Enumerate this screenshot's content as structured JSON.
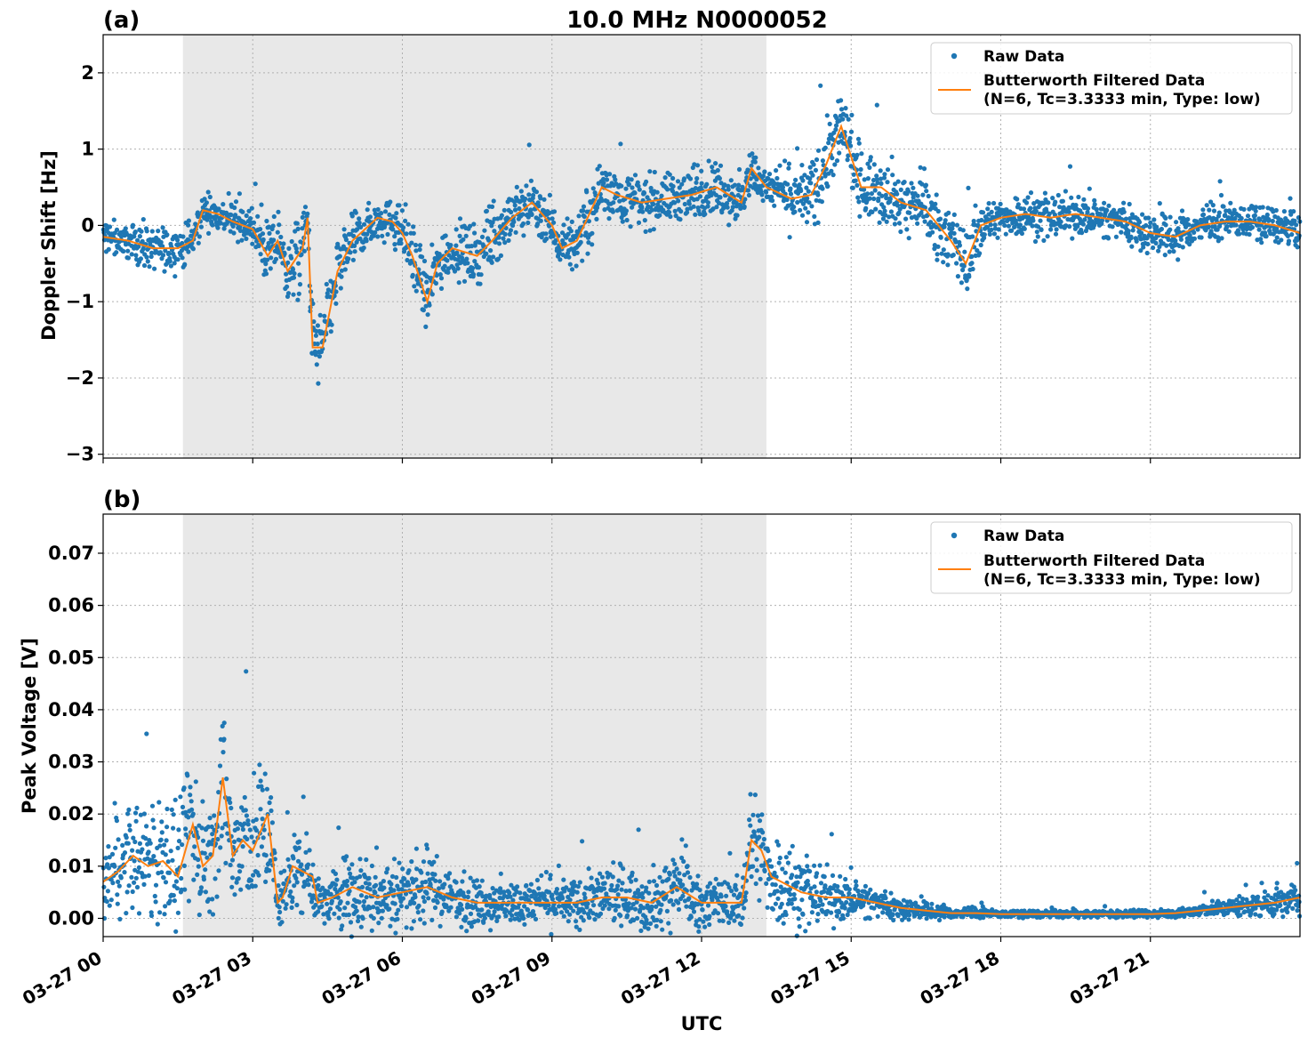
{
  "figure": {
    "title": "10.0 MHz N0000052",
    "xlabel": "UTC",
    "colors": {
      "raw": "#1f77b4",
      "filtered": "#ff7f0e",
      "shade": "#e8e8e8"
    }
  },
  "x_ticks": [
    "03-27 00",
    "03-27 03",
    "03-27 06",
    "03-27 09",
    "03-27 12",
    "03-27 15",
    "03-27 18",
    "03-27 21"
  ],
  "chart_data": [
    {
      "panel": "(a)",
      "type": "scatter",
      "title": "10.0 MHz N0000052",
      "xlabel": "",
      "ylabel": "Doppler Shift [Hz]",
      "xlim_hours": [
        0,
        24
      ],
      "ylim": [
        -3.05,
        2.5
      ],
      "yticks": [
        2,
        1,
        0,
        -1,
        -2,
        -3
      ],
      "ytick_labels": [
        "2",
        "1",
        "0",
        "−1",
        "−2",
        "−3"
      ],
      "grid": true,
      "legend_position": "top-right",
      "shaded_interval_hours": [
        1.6,
        13.3
      ],
      "legend": {
        "raw": "Raw Data",
        "filtered_line1": "Butterworth Filtered Data",
        "filtered_line2": "(N=6, Tc=3.3333 min, Type: low)"
      },
      "series": [
        {
          "name": "Butterworth Filtered Data",
          "x_hours": [
            0,
            0.5,
            1,
            1.5,
            1.8,
            2,
            2.3,
            2.6,
            3,
            3.3,
            3.5,
            3.7,
            4,
            4.1,
            4.2,
            4.4,
            4.7,
            5,
            5.5,
            5.8,
            6,
            6.2,
            6.5,
            6.7,
            7,
            7.5,
            7.8,
            8.2,
            8.6,
            9,
            9.2,
            9.5,
            10,
            10.3,
            10.8,
            11.3,
            11.8,
            12.3,
            12.8,
            13,
            13.3,
            13.8,
            14.2,
            14.5,
            14.8,
            15.2,
            15.6,
            16,
            16.5,
            17,
            17.3,
            17.6,
            18,
            18.5,
            19,
            19.5,
            20,
            20.5,
            21,
            21.5,
            22,
            22.5,
            23,
            23.5,
            24
          ],
          "y": [
            -0.15,
            -0.2,
            -0.3,
            -0.3,
            -0.2,
            0.2,
            0.15,
            0.05,
            -0.05,
            -0.4,
            -0.2,
            -0.6,
            -0.3,
            0.1,
            -1.6,
            -1.6,
            -0.6,
            -0.2,
            0.1,
            0.05,
            -0.1,
            -0.4,
            -1.0,
            -0.5,
            -0.3,
            -0.4,
            -0.2,
            0.1,
            0.3,
            0.0,
            -0.3,
            -0.2,
            0.5,
            0.4,
            0.3,
            0.35,
            0.4,
            0.5,
            0.3,
            0.75,
            0.5,
            0.35,
            0.4,
            0.8,
            1.3,
            0.5,
            0.5,
            0.3,
            0.2,
            -0.2,
            -0.5,
            0.0,
            0.1,
            0.15,
            0.1,
            0.15,
            0.1,
            0.05,
            -0.1,
            -0.15,
            0.0,
            0.05,
            0.05,
            0.0,
            -0.1
          ]
        },
        {
          "name": "Raw Data",
          "spread_hz": [
            0.2,
            0.2,
            0.25,
            0.25,
            0.25,
            0.2,
            0.2,
            0.2,
            0.25,
            0.35,
            0.35,
            0.4,
            0.45,
            0.3,
            0.55,
            0.5,
            0.4,
            0.3,
            0.25,
            0.25,
            0.3,
            0.35,
            0.4,
            0.35,
            0.3,
            0.35,
            0.3,
            0.3,
            0.3,
            0.3,
            0.3,
            0.3,
            0.35,
            0.3,
            0.3,
            0.3,
            0.3,
            0.3,
            0.3,
            0.3,
            0.2,
            0.35,
            0.4,
            0.45,
            0.45,
            0.4,
            0.4,
            0.35,
            0.35,
            0.35,
            0.4,
            0.3,
            0.25,
            0.25,
            0.25,
            0.25,
            0.25,
            0.25,
            0.25,
            0.25,
            0.2,
            0.2,
            0.2,
            0.2,
            0.2
          ]
        }
      ]
    },
    {
      "panel": "(b)",
      "type": "scatter",
      "xlabel": "UTC",
      "ylabel": "Peak Voltage [V]",
      "xlim_hours": [
        0,
        24
      ],
      "ylim": [
        -0.0035,
        0.0775
      ],
      "yticks": [
        0.07,
        0.06,
        0.05,
        0.04,
        0.03,
        0.02,
        0.01,
        0.0
      ],
      "ytick_labels": [
        "0.07",
        "0.06",
        "0.05",
        "0.04",
        "0.03",
        "0.02",
        "0.01",
        "0.00"
      ],
      "grid": true,
      "legend_position": "top-right",
      "shaded_interval_hours": [
        1.6,
        13.3
      ],
      "legend": {
        "raw": "Raw Data",
        "filtered_line1": "Butterworth Filtered Data",
        "filtered_line2": "(N=6, Tc=3.3333 min, Type: low)"
      },
      "series": [
        {
          "name": "Butterworth Filtered Data",
          "x_hours": [
            0,
            0.3,
            0.6,
            0.9,
            1.2,
            1.5,
            1.8,
            2.0,
            2.2,
            2.4,
            2.6,
            2.8,
            3.0,
            3.3,
            3.5,
            3.6,
            3.8,
            4.0,
            4.2,
            4.3,
            4.6,
            5.0,
            5.5,
            6.0,
            6.5,
            7.0,
            7.5,
            8.0,
            8.5,
            9.0,
            9.5,
            10.0,
            10.5,
            11.0,
            11.5,
            12.0,
            12.5,
            12.8,
            13.0,
            13.2,
            13.4,
            13.6,
            14.0,
            14.5,
            15.0,
            15.5,
            16.0,
            16.5,
            17.0,
            17.5,
            18.0,
            19.0,
            20.0,
            21.0,
            21.5,
            22.0,
            22.5,
            23.0,
            23.5,
            24.0
          ],
          "y": [
            0.007,
            0.009,
            0.012,
            0.01,
            0.011,
            0.008,
            0.018,
            0.01,
            0.012,
            0.027,
            0.012,
            0.015,
            0.013,
            0.02,
            0.003,
            0.004,
            0.01,
            0.009,
            0.008,
            0.003,
            0.004,
            0.006,
            0.004,
            0.005,
            0.006,
            0.004,
            0.003,
            0.003,
            0.003,
            0.003,
            0.003,
            0.004,
            0.004,
            0.003,
            0.006,
            0.003,
            0.003,
            0.003,
            0.015,
            0.013,
            0.008,
            0.007,
            0.005,
            0.004,
            0.004,
            0.003,
            0.002,
            0.0015,
            0.001,
            0.001,
            0.0008,
            0.0008,
            0.0008,
            0.0008,
            0.001,
            0.0015,
            0.002,
            0.0025,
            0.003,
            0.004
          ]
        },
        {
          "name": "Raw Data",
          "spread_v": [
            0.006,
            0.008,
            0.01,
            0.01,
            0.01,
            0.01,
            0.012,
            0.01,
            0.012,
            0.014,
            0.012,
            0.012,
            0.012,
            0.014,
            0.004,
            0.005,
            0.008,
            0.008,
            0.007,
            0.003,
            0.005,
            0.007,
            0.006,
            0.006,
            0.006,
            0.005,
            0.004,
            0.004,
            0.004,
            0.004,
            0.004,
            0.005,
            0.005,
            0.005,
            0.007,
            0.004,
            0.004,
            0.004,
            0.012,
            0.01,
            0.008,
            0.008,
            0.006,
            0.005,
            0.004,
            0.003,
            0.002,
            0.0015,
            0.001,
            0.0008,
            0.0006,
            0.0006,
            0.0006,
            0.0006,
            0.0008,
            0.0012,
            0.0015,
            0.002,
            0.0025,
            0.003
          ]
        }
      ]
    }
  ]
}
